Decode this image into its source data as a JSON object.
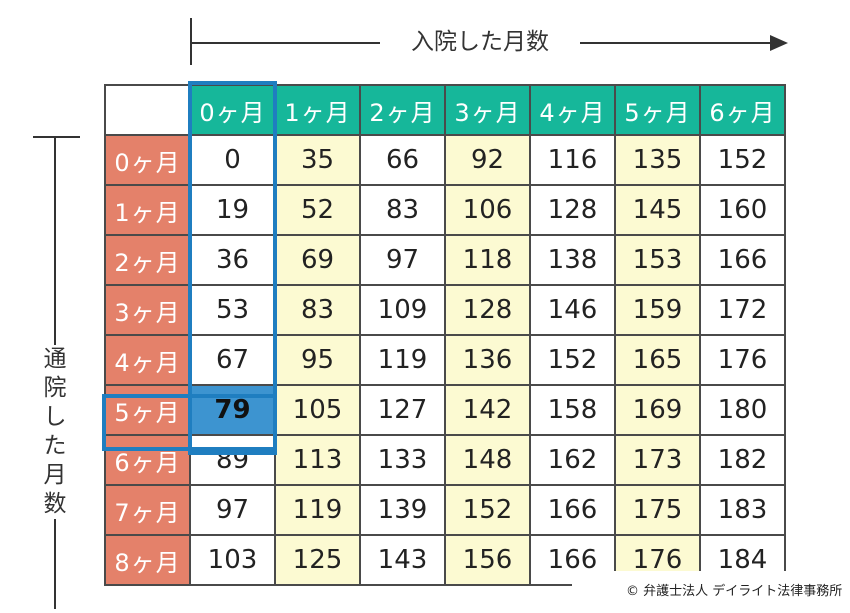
{
  "chart_data": {
    "type": "table",
    "xlabel": "入院した月数",
    "ylabel": "通院した月数",
    "columns": [
      "0ヶ月",
      "1ヶ月",
      "2ヶ月",
      "3ヶ月",
      "4ヶ月",
      "5ヶ月",
      "6ヶ月"
    ],
    "rows": [
      "0ヶ月",
      "1ヶ月",
      "2ヶ月",
      "3ヶ月",
      "4ヶ月",
      "5ヶ月",
      "6ヶ月",
      "7ヶ月",
      "8ヶ月"
    ],
    "values": [
      [
        0,
        35,
        66,
        92,
        116,
        135,
        152
      ],
      [
        19,
        52,
        83,
        106,
        128,
        145,
        160
      ],
      [
        36,
        69,
        97,
        118,
        138,
        153,
        166
      ],
      [
        53,
        83,
        109,
        128,
        146,
        159,
        172
      ],
      [
        67,
        95,
        119,
        136,
        152,
        165,
        176
      ],
      [
        79,
        105,
        127,
        142,
        158,
        169,
        180
      ],
      [
        89,
        113,
        133,
        148,
        162,
        173,
        182
      ],
      [
        97,
        119,
        139,
        152,
        166,
        175,
        183
      ],
      [
        103,
        125,
        143,
        156,
        166,
        176,
        184
      ]
    ],
    "highlight": {
      "row": "5ヶ月",
      "column": "0ヶ月",
      "value": 79
    },
    "colors": {
      "column_header": "#16b79a",
      "row_header": "#e4816a",
      "shaded_column": "#fcfad2",
      "highlight_border": "#1f7ec0",
      "highlight_cell": "#3d94d0"
    }
  },
  "copyright": "© 弁護士法人 デイライト法律事務所"
}
